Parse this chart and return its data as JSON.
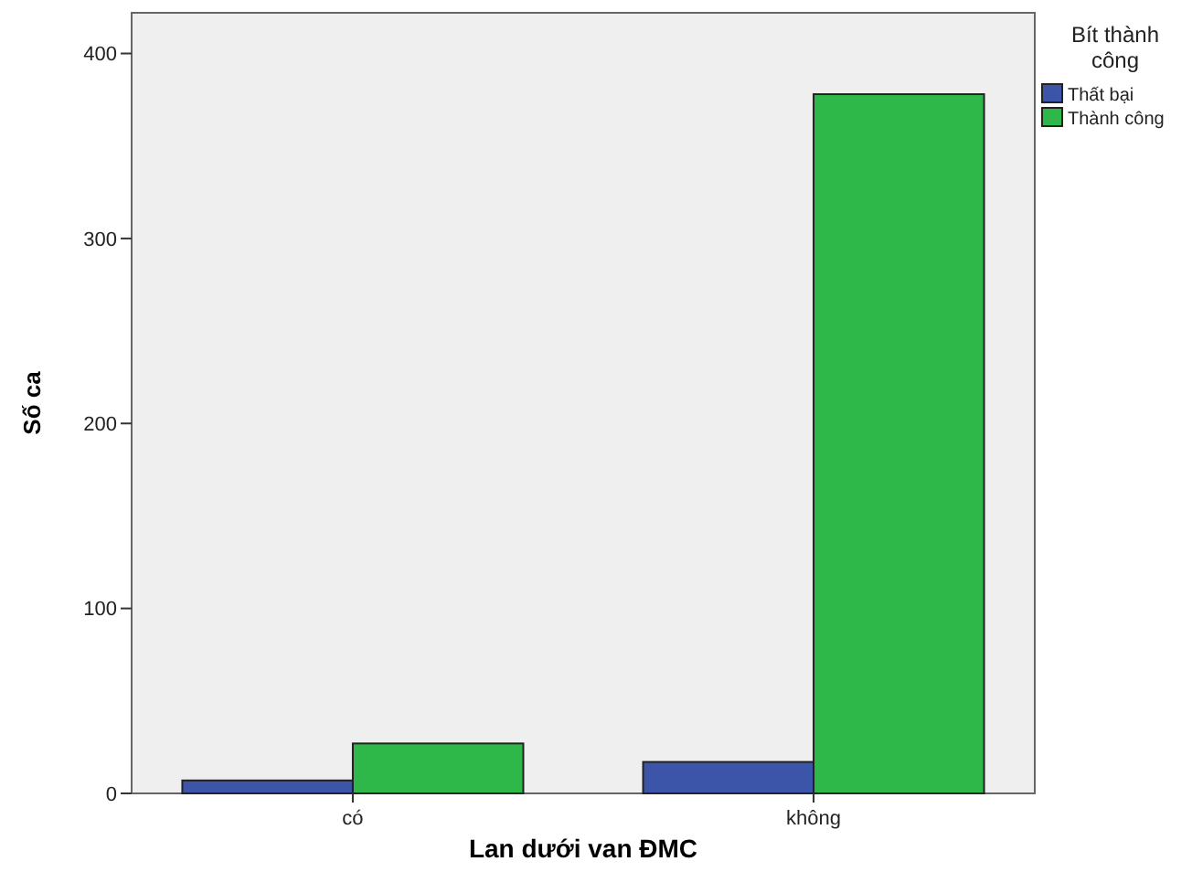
{
  "chart_data": {
    "type": "bar",
    "xlabel": "Lan dưới van ĐMC",
    "ylabel": "Số ca",
    "legend_title": "Bít thành công",
    "categories": [
      "có",
      "không"
    ],
    "series": [
      {
        "name": "Thất bại",
        "color": "#3d55a8",
        "values": [
          7,
          17
        ]
      },
      {
        "name": "Thành công",
        "color": "#2fb84a",
        "values": [
          27,
          378
        ]
      }
    ],
    "ylim": [
      0,
      422
    ],
    "yticks": [
      0,
      100,
      200,
      300,
      400
    ],
    "legend": "right",
    "grid": false
  }
}
